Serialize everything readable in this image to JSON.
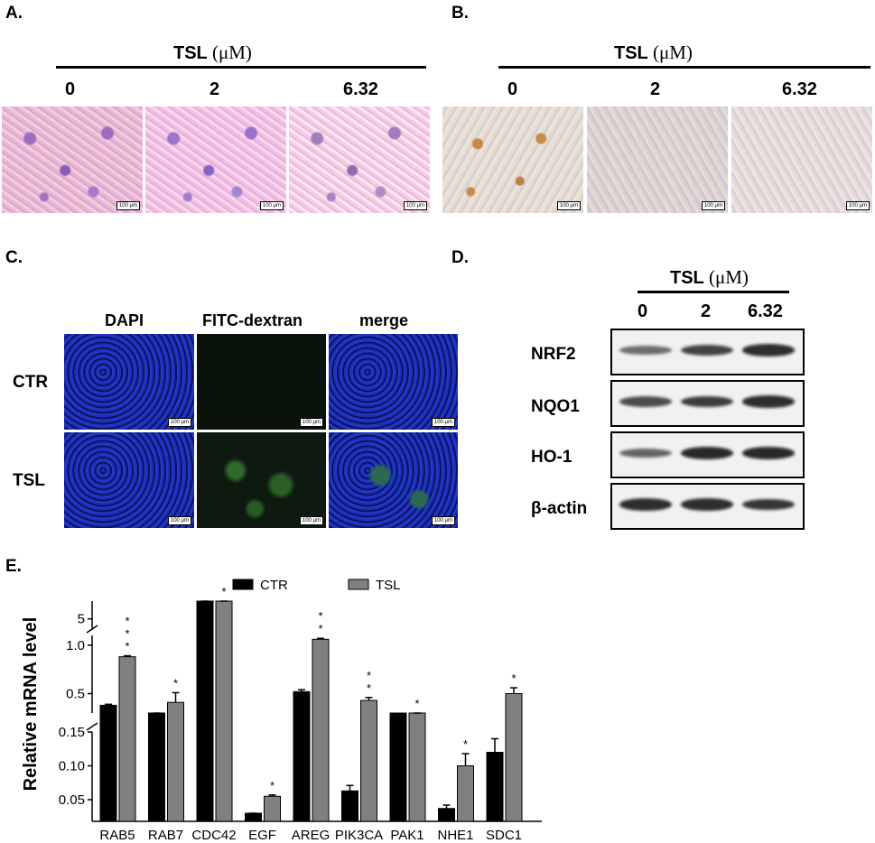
{
  "panels": {
    "a": "A.",
    "b": "B.",
    "c": "C.",
    "d": "D.",
    "e": "E."
  },
  "tsl_header": {
    "label": "TSL",
    "unit": "(μM)"
  },
  "concentrations": [
    "0",
    "2",
    "6.32"
  ],
  "scale_bar": "100 μm",
  "panel_c": {
    "columns": [
      "DAPI",
      "FITC-dextran",
      "merge"
    ],
    "rows": [
      "CTR",
      "TSL"
    ]
  },
  "panel_d": {
    "proteins": [
      "NRF2",
      "NQO1",
      "HO-1",
      "β-actin"
    ],
    "band_intensity": [
      [
        0.45,
        0.75,
        0.9
      ],
      [
        0.7,
        0.8,
        0.9
      ],
      [
        0.5,
        0.95,
        0.95
      ],
      [
        0.9,
        0.9,
        0.85
      ]
    ]
  },
  "chart_data": {
    "type": "bar",
    "ylabel": "Relative mRNA level",
    "broken_axis": true,
    "y_segments": [
      {
        "range": [
          0.03,
          0.15
        ],
        "ticks": [
          "0.05",
          "0.10",
          "0.15"
        ]
      },
      {
        "range": [
          0.3,
          1.1
        ],
        "ticks": [
          "0.5",
          "1.0"
        ]
      },
      {
        "range": [
          4.5,
          5.8
        ],
        "ticks": [
          "5"
        ]
      }
    ],
    "categories": [
      "RAB5",
      "RAB7",
      "CDC42",
      "EGF",
      "AREG",
      "PIK3CA",
      "PAK1",
      "NHE1",
      "SDC1"
    ],
    "series": [
      {
        "name": "CTR",
        "color": "#000000",
        "values": [
          0.38,
          0.26,
          6.0,
          0.015,
          0.52,
          0.063,
          0.2,
          0.037,
          0.12
        ],
        "errors": [
          0.01,
          0.02,
          0.1,
          0.004,
          0.02,
          0.008,
          0.0,
          0.005,
          0.02
        ]
      },
      {
        "name": "TSL",
        "color": "#808080",
        "values": [
          0.88,
          0.41,
          6.1,
          0.055,
          1.06,
          0.43,
          0.22,
          0.1,
          0.5
        ],
        "errors": [
          0.01,
          0.1,
          0.1,
          0.002,
          0.01,
          0.03,
          0.02,
          0.018,
          0.06
        ]
      }
    ],
    "significance": [
      "* * *",
      "*",
      "*",
      "*",
      "* *",
      "* *",
      "*",
      "*",
      "*"
    ],
    "legend_position": "top"
  }
}
